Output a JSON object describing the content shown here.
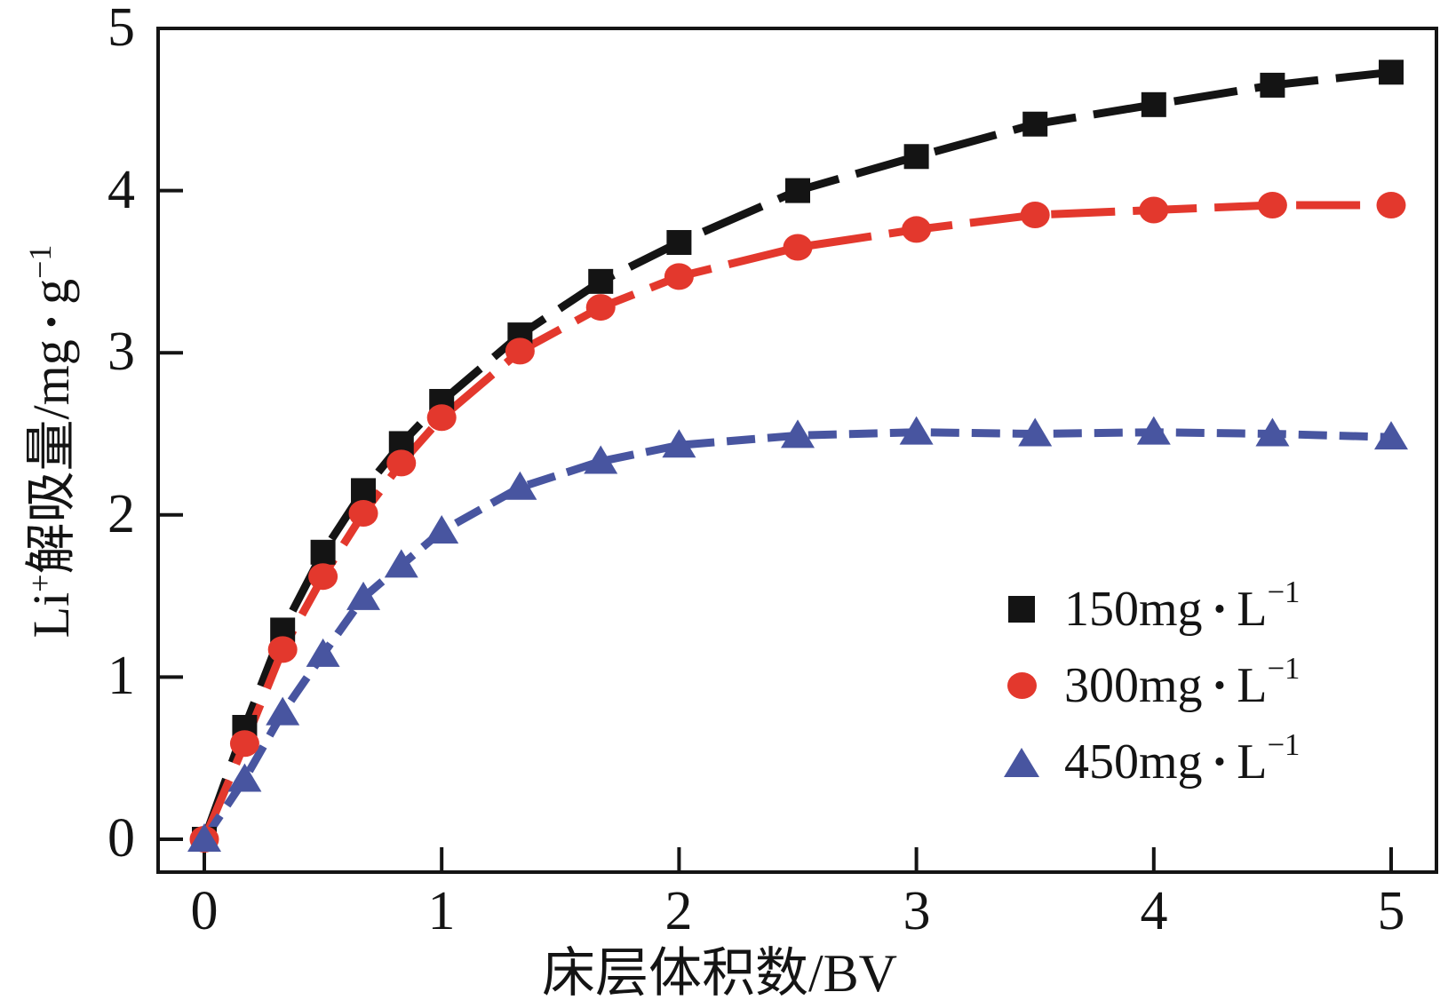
{
  "chart_data": {
    "type": "line",
    "title": "",
    "xlabel": "床层体积数/BV",
    "ylabel": "Li⁺解吸量/mg·g⁻¹",
    "xlim": [
      0,
      5
    ],
    "ylim": [
      0,
      5
    ],
    "x_ticks": [
      0,
      1,
      2,
      3,
      4,
      5
    ],
    "y_ticks": [
      0,
      1,
      2,
      3,
      4,
      5
    ],
    "grid": false,
    "legend_position": "right-middle",
    "x": [
      0,
      0.17,
      0.33,
      0.5,
      0.67,
      0.83,
      1.0,
      1.33,
      1.67,
      2.0,
      2.5,
      3.0,
      3.5,
      4.0,
      4.5,
      5.0
    ],
    "series": [
      {
        "name": "150mg·L⁻¹",
        "color": "#141414",
        "marker": "square",
        "line": "dashed",
        "values": [
          0,
          0.69,
          1.29,
          1.77,
          2.15,
          2.44,
          2.7,
          3.11,
          3.44,
          3.68,
          4.0,
          4.21,
          4.41,
          4.53,
          4.65,
          4.73
        ]
      },
      {
        "name": "300mg·L⁻¹",
        "color": "#e3382d",
        "marker": "circle",
        "line": "dashed",
        "values": [
          0,
          0.59,
          1.17,
          1.62,
          2.01,
          2.32,
          2.6,
          3.01,
          3.28,
          3.47,
          3.65,
          3.76,
          3.85,
          3.88,
          3.91,
          3.91
        ]
      },
      {
        "name": "450mg·L⁻¹",
        "color": "#4855a0",
        "marker": "triangle",
        "line": "dashed",
        "values": [
          0,
          0.37,
          0.78,
          1.14,
          1.49,
          1.69,
          1.9,
          2.17,
          2.33,
          2.43,
          2.49,
          2.51,
          2.5,
          2.51,
          2.5,
          2.48
        ]
      }
    ]
  },
  "y_axis": {
    "label_parts": {
      "li": "Li",
      "li_exp": "+",
      "mid": "解吸量/mg",
      "dot": "·",
      "unit": "g",
      "exp": "−1"
    }
  },
  "x_axis": {
    "label": "床层体积数/BV"
  },
  "legend": {
    "entries": [
      {
        "prefix": "150mg",
        "dot": "·",
        "unit": "L",
        "exp": "−1"
      },
      {
        "prefix": "300mg",
        "dot": "·",
        "unit": "L",
        "exp": "−1"
      },
      {
        "prefix": "450mg",
        "dot": "·",
        "unit": "L",
        "exp": "−1"
      }
    ]
  }
}
